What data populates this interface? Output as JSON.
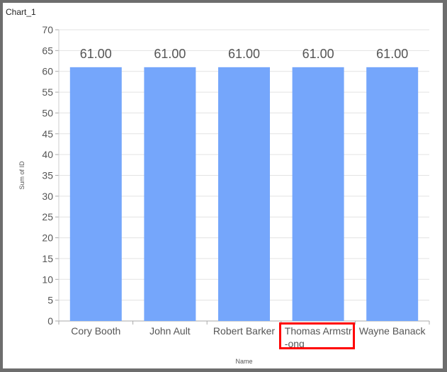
{
  "chart_title": "Chart_1",
  "chart_data": {
    "type": "bar",
    "categories": [
      "Cory Booth",
      "John Ault",
      "Robert Barker",
      "Thomas Armstr\n-ong",
      "Wayne Banack"
    ],
    "values": [
      61,
      61,
      61,
      61,
      61
    ],
    "data_labels": [
      "61.00",
      "61.00",
      "61.00",
      "61.00",
      "61.00"
    ],
    "xlabel": "Name",
    "ylabel": "Sum of ID",
    "ylim": [
      0,
      70
    ],
    "yticks": [
      0,
      5,
      10,
      15,
      20,
      25,
      30,
      35,
      40,
      45,
      50,
      55,
      60,
      65,
      70
    ],
    "grid": true,
    "bar_color": "#75a6fb",
    "highlighted_category": "Thomas Armstr\n-ong",
    "highlight_color": "#ff0000"
  }
}
